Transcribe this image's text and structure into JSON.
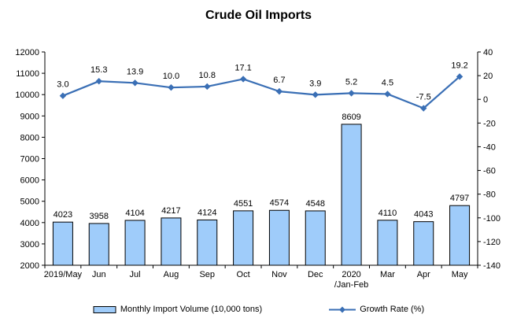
{
  "title": "Crude Oil Imports",
  "colors": {
    "bar_fill": "#9FCCFA",
    "bar_border": "#000000",
    "line": "#3A6FB5",
    "axis": "#000000",
    "text": "#000000",
    "background": "#FFFFFF"
  },
  "legend": {
    "bar_label": "Monthly Import Volume (10,000 tons)",
    "line_label": "Growth Rate (%)"
  },
  "chart_data": {
    "type": "bar",
    "title": "Crude Oil Imports",
    "categories": [
      "2019/May",
      "Jun",
      "Jul",
      "Aug",
      "Sep",
      "Oct",
      "Nov",
      "Dec",
      "2020\n/Jan-Feb",
      "Mar",
      "Apr",
      "May"
    ],
    "series": [
      {
        "name": "Monthly Import Volume (10,000 tons)",
        "type": "bar",
        "axis": "left",
        "values": [
          4023,
          3958,
          4104,
          4217,
          4124,
          4551,
          4574,
          4548,
          8609,
          4110,
          4043,
          4797
        ]
      },
      {
        "name": "Growth Rate (%)",
        "type": "line",
        "axis": "right",
        "values": [
          3.0,
          15.3,
          13.9,
          10.0,
          10.8,
          17.1,
          6.7,
          3.9,
          5.2,
          4.5,
          -7.5,
          19.2
        ]
      }
    ],
    "left_axis": {
      "min": 2000,
      "max": 12000,
      "step": 1000
    },
    "right_axis": {
      "min": -140,
      "max": 40,
      "step": 20
    },
    "grid": false,
    "legend_position": "bottom"
  }
}
